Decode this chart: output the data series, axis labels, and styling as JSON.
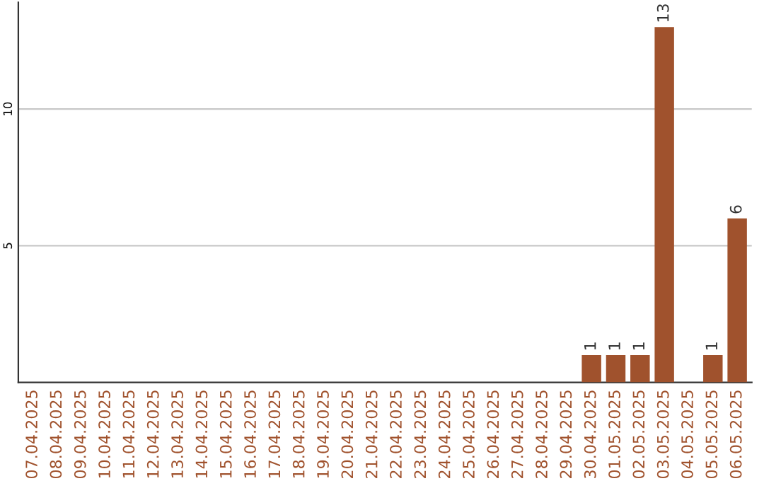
{
  "chart_data": {
    "type": "bar",
    "categories": [
      "07.04.2025",
      "08.04.2025",
      "09.04.2025",
      "10.04.2025",
      "11.04.2025",
      "12.04.2025",
      "13.04.2025",
      "14.04.2025",
      "15.04.2025",
      "16.04.2025",
      "17.04.2025",
      "18.04.2025",
      "19.04.2025",
      "20.04.2025",
      "21.04.2025",
      "22.04.2025",
      "23.04.2025",
      "24.04.2025",
      "25.04.2025",
      "26.04.2025",
      "27.04.2025",
      "28.04.2025",
      "29.04.2025",
      "30.04.2025",
      "01.05.2025",
      "02.05.2025",
      "03.05.2025",
      "04.05.2025",
      "05.05.2025",
      "06.05.2025"
    ],
    "values": [
      0,
      0,
      0,
      0,
      0,
      0,
      0,
      0,
      0,
      0,
      0,
      0,
      0,
      0,
      0,
      0,
      0,
      0,
      0,
      0,
      0,
      0,
      0,
      1,
      1,
      1,
      13,
      0,
      1,
      6
    ],
    "value_labels": [
      null,
      null,
      null,
      null,
      null,
      null,
      null,
      null,
      null,
      null,
      null,
      null,
      null,
      null,
      null,
      null,
      null,
      null,
      null,
      null,
      null,
      null,
      null,
      "1",
      "1",
      "1",
      "13",
      null,
      "1",
      "6"
    ],
    "color": "#a0522d",
    "ylim": [
      0,
      13.9
    ],
    "yticks": [
      5,
      10
    ],
    "grid": "y"
  }
}
